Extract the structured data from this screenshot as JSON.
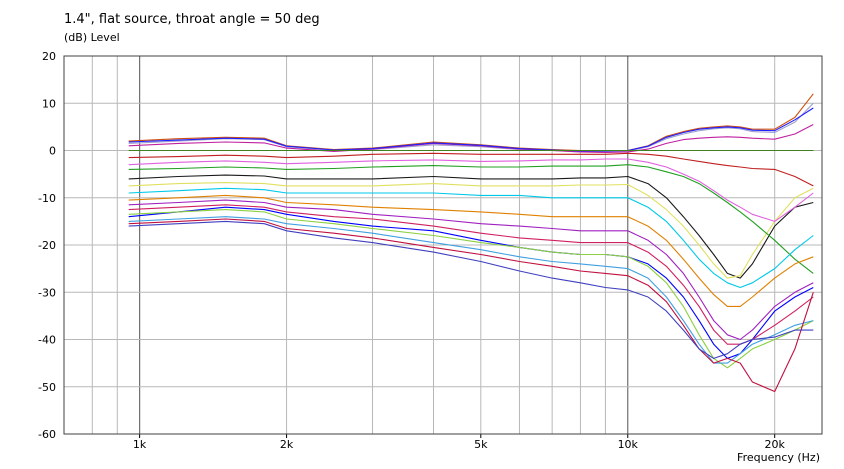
{
  "chart_data": {
    "type": "line",
    "title": "1.4\", flat source, throat angle = 50 deg",
    "ylabel": "(dB)  Level",
    "xlabel": "Frequency  (Hz)",
    "x_scale": "log",
    "xlim": [
      700,
      25000
    ],
    "ylim": [
      -60,
      20
    ],
    "grid": true,
    "y_ticks": [
      20,
      10,
      0,
      -10,
      -20,
      -30,
      -40,
      -50,
      -60
    ],
    "x_ticks": [
      {
        "value": 1000,
        "label": "1k"
      },
      {
        "value": 2000,
        "label": "2k"
      },
      {
        "value": 5000,
        "label": "5k"
      },
      {
        "value": 10000,
        "label": "10k"
      },
      {
        "value": 20000,
        "label": "20k"
      }
    ],
    "series": [
      {
        "color": "#1a1a1a",
        "x": [
          950,
          1200,
          1500,
          1800,
          2000,
          2500,
          3000,
          4000,
          5000,
          6000,
          7000,
          8000,
          9000,
          10000,
          11000,
          12000,
          13000,
          14000,
          15000,
          16000,
          17000,
          18000,
          20000,
          22000,
          24000
        ],
        "y": [
          -6.0,
          -5.5,
          -5.2,
          -5.4,
          -6.0,
          -6.0,
          -6.0,
          -5.5,
          -6.0,
          -6.0,
          -6.0,
          -5.8,
          -5.8,
          -5.5,
          -7.0,
          -10.0,
          -14.0,
          -18.0,
          -22.0,
          -26.0,
          -27.0,
          -24.0,
          -16.0,
          -12.0,
          -11.0
        ]
      },
      {
        "color": "#e0e060",
        "x": [
          950,
          1200,
          1500,
          1800,
          2000,
          2500,
          3000,
          4000,
          5000,
          6000,
          7000,
          8000,
          9000,
          10000,
          11000,
          12000,
          13000,
          14000,
          15000,
          16000,
          17000,
          18000,
          20000,
          22000,
          24000
        ],
        "y": [
          -7.5,
          -7.0,
          -6.8,
          -7.0,
          -7.5,
          -7.5,
          -7.5,
          -7.0,
          -7.5,
          -7.5,
          -7.5,
          -7.3,
          -7.3,
          -7.2,
          -9.5,
          -12.5,
          -16.0,
          -20.0,
          -24.0,
          -27.0,
          -26.5,
          -22.0,
          -15.0,
          -10.0,
          -8.0
        ]
      },
      {
        "color": "#0000ff",
        "x": [
          950,
          1200,
          1500,
          1800,
          2000,
          2500,
          3000,
          4000,
          5000,
          6000,
          7000,
          8000,
          9000,
          10000,
          11000,
          12000,
          13000,
          14000,
          15000,
          16000,
          17000,
          18000,
          20000,
          22000,
          24000
        ],
        "y": [
          -14.0,
          -13.0,
          -12.0,
          -12.5,
          -13.5,
          -15.0,
          -16.0,
          -17.0,
          -19.0,
          -20.5,
          -21.5,
          -22.0,
          -22.0,
          -22.5,
          -24.0,
          -27.0,
          -31.0,
          -36.0,
          -41.0,
          -44.0,
          -43.0,
          -40.0,
          -34.0,
          -31.0,
          -29.0
        ]
      },
      {
        "color": "#a0a0d0",
        "x": [
          950,
          1200,
          1500,
          1800,
          2000,
          2500,
          3000,
          4000,
          5000,
          6000,
          7000,
          8000,
          9000,
          10000,
          11000,
          12000,
          13000,
          14000,
          15000,
          16000,
          17000,
          18000,
          20000,
          22000,
          24000
        ],
        "y": [
          1.5,
          2.0,
          2.5,
          2.3,
          0.8,
          0.0,
          0.2,
          1.2,
          0.8,
          0.2,
          0.0,
          -0.3,
          -0.3,
          -0.2,
          0.8,
          2.5,
          3.5,
          4.2,
          4.6,
          4.8,
          4.6,
          4.0,
          3.8,
          6.0,
          10.0
        ]
      },
      {
        "color": "#20a020",
        "x": [
          950,
          1200,
          1500,
          1800,
          2000,
          2500,
          3000,
          4000,
          5000,
          6000,
          7000,
          8000,
          9000,
          10000,
          11000,
          12000,
          13000,
          14000,
          15000,
          16000,
          17000,
          18000,
          20000,
          22000,
          24000
        ],
        "y": [
          -4.0,
          -3.8,
          -3.5,
          -3.7,
          -4.0,
          -3.8,
          -3.5,
          -3.2,
          -3.5,
          -3.5,
          -3.3,
          -3.3,
          -3.3,
          -3.0,
          -3.5,
          -4.5,
          -5.5,
          -7.0,
          -9.0,
          -11.0,
          -13.0,
          -15.0,
          -19.0,
          -23.0,
          -26.0
        ]
      },
      {
        "color": "#00c8e8",
        "x": [
          950,
          1200,
          1500,
          1800,
          2000,
          2500,
          3000,
          4000,
          5000,
          6000,
          7000,
          8000,
          9000,
          10000,
          11000,
          12000,
          13000,
          14000,
          15000,
          16000,
          17000,
          18000,
          20000,
          22000,
          24000
        ],
        "y": [
          -9.0,
          -8.5,
          -8.0,
          -8.3,
          -9.0,
          -9.0,
          -9.0,
          -9.0,
          -9.5,
          -9.5,
          -10.0,
          -10.0,
          -10.0,
          -10.0,
          -12.0,
          -15.0,
          -19.0,
          -23.0,
          -26.0,
          -28.0,
          -29.0,
          -28.0,
          -25.0,
          -21.0,
          -18.0
        ]
      },
      {
        "color": "#e08000",
        "x": [
          950,
          1200,
          1500,
          1800,
          2000,
          2500,
          3000,
          4000,
          5000,
          6000,
          7000,
          8000,
          9000,
          10000,
          11000,
          12000,
          13000,
          14000,
          15000,
          16000,
          17000,
          18000,
          20000,
          22000,
          24000
        ],
        "y": [
          -10.5,
          -10.0,
          -9.5,
          -10.0,
          -11.0,
          -11.5,
          -12.0,
          -12.5,
          -13.0,
          -13.5,
          -14.0,
          -14.0,
          -14.0,
          -14.0,
          -16.0,
          -19.0,
          -23.0,
          -27.0,
          -30.5,
          -33.0,
          -33.0,
          -31.0,
          -27.0,
          -24.0,
          -22.5
        ]
      },
      {
        "color": "#a020c0",
        "x": [
          950,
          1200,
          1500,
          1800,
          2000,
          2500,
          3000,
          4000,
          5000,
          6000,
          7000,
          8000,
          9000,
          10000,
          11000,
          12000,
          13000,
          14000,
          15000,
          16000,
          17000,
          18000,
          20000,
          22000,
          24000
        ],
        "y": [
          -11.5,
          -11.0,
          -10.5,
          -11.0,
          -12.0,
          -12.5,
          -13.5,
          -14.5,
          -15.5,
          -16.0,
          -16.5,
          -17.0,
          -17.0,
          -17.0,
          -19.0,
          -22.0,
          -26.0,
          -31.0,
          -36.0,
          -39.0,
          -40.0,
          -38.0,
          -33.0,
          -30.0,
          -28.0
        ]
      },
      {
        "color": "#d02060",
        "x": [
          950,
          1200,
          1500,
          1800,
          2000,
          2500,
          3000,
          4000,
          5000,
          6000,
          7000,
          8000,
          9000,
          10000,
          11000,
          12000,
          13000,
          14000,
          15000,
          16000,
          17000,
          18000,
          20000,
          22000,
          24000
        ],
        "y": [
          -12.5,
          -12.0,
          -11.5,
          -12.0,
          -13.0,
          -14.0,
          -14.5,
          -16.0,
          -17.5,
          -18.5,
          -19.0,
          -19.5,
          -19.5,
          -19.5,
          -21.5,
          -24.5,
          -28.5,
          -33.0,
          -38.0,
          -41.0,
          -41.0,
          -40.0,
          -37.0,
          -34.0,
          -31.0
        ]
      },
      {
        "color": "#8cd040",
        "x": [
          950,
          1200,
          1500,
          1800,
          2000,
          2500,
          3000,
          4000,
          5000,
          6000,
          7000,
          8000,
          9000,
          10000,
          11000,
          12000,
          13000,
          14000,
          15000,
          16000,
          17000,
          18000,
          20000,
          22000,
          24000
        ],
        "y": [
          -13.5,
          -13.0,
          -12.5,
          -13.0,
          -14.5,
          -15.5,
          -16.5,
          -18.0,
          -19.5,
          -20.5,
          -21.5,
          -22.0,
          -22.0,
          -22.5,
          -24.5,
          -28.0,
          -33.0,
          -39.0,
          -44.0,
          -46.0,
          -44.0,
          -42.0,
          -40.0,
          -38.0,
          -36.0
        ]
      },
      {
        "color": "#40a0e0",
        "x": [
          950,
          1200,
          1500,
          1800,
          2000,
          2500,
          3000,
          4000,
          5000,
          6000,
          7000,
          8000,
          9000,
          10000,
          11000,
          12000,
          13000,
          14000,
          15000,
          16000,
          17000,
          18000,
          20000,
          22000,
          24000
        ],
        "y": [
          -15.0,
          -14.5,
          -14.0,
          -14.5,
          -15.5,
          -16.5,
          -17.5,
          -19.5,
          -21.0,
          -22.5,
          -23.5,
          -24.0,
          -24.5,
          -25.0,
          -27.0,
          -31.0,
          -36.0,
          -41.0,
          -45.0,
          -45.0,
          -43.0,
          -41.0,
          -39.0,
          -37.0,
          -36.0
        ]
      },
      {
        "color": "#c01040",
        "x": [
          950,
          1200,
          1500,
          1800,
          2000,
          2500,
          3000,
          4000,
          5000,
          6000,
          7000,
          8000,
          9000,
          10000,
          11000,
          12000,
          13000,
          14000,
          15000,
          16000,
          17000,
          18000,
          20000,
          22000,
          24000
        ],
        "y": [
          -15.5,
          -15.0,
          -14.5,
          -15.0,
          -16.5,
          -17.5,
          -18.5,
          -20.5,
          -22.0,
          -23.5,
          -24.5,
          -25.5,
          -26.0,
          -26.5,
          -28.5,
          -32.0,
          -37.0,
          -42.0,
          -45.0,
          -44.0,
          -45.0,
          -49.0,
          -51.0,
          -42.0,
          -30.0
        ]
      },
      {
        "color": "#4040c0",
        "x": [
          950,
          1200,
          1500,
          1800,
          2000,
          2500,
          3000,
          4000,
          5000,
          6000,
          7000,
          8000,
          9000,
          10000,
          11000,
          12000,
          13000,
          14000,
          15000,
          16000,
          17000,
          18000,
          20000,
          22000,
          24000
        ],
        "y": [
          -16.0,
          -15.5,
          -15.0,
          -15.5,
          -17.0,
          -18.5,
          -19.5,
          -21.5,
          -23.5,
          -25.5,
          -27.0,
          -28.0,
          -29.0,
          -29.5,
          -31.0,
          -34.0,
          -38.0,
          -42.0,
          -44.0,
          -43.0,
          -41.0,
          -40.0,
          -39.5,
          -38.0,
          -38.0
        ]
      },
      {
        "color": "#e060e0",
        "x": [
          950,
          1200,
          1500,
          1800,
          2000,
          2500,
          3000,
          4000,
          5000,
          6000,
          7000,
          8000,
          9000,
          10000,
          11000,
          12000,
          13000,
          14000,
          15000,
          16000,
          17000,
          18000,
          20000,
          22000,
          24000
        ],
        "y": [
          -3.0,
          -2.5,
          -2.2,
          -2.5,
          -2.8,
          -2.5,
          -2.2,
          -2.0,
          -2.3,
          -2.2,
          -2.0,
          -2.0,
          -1.8,
          -1.8,
          -2.5,
          -3.5,
          -5.0,
          -6.5,
          -8.5,
          -10.5,
          -12.0,
          -13.5,
          -15.0,
          -12.0,
          -9.0
        ]
      },
      {
        "color": "#c02020",
        "x": [
          950,
          1200,
          1500,
          1800,
          2000,
          2500,
          3000,
          4000,
          5000,
          6000,
          7000,
          8000,
          9000,
          10000,
          11000,
          12000,
          13000,
          14000,
          15000,
          16000,
          17000,
          18000,
          20000,
          22000,
          24000
        ],
        "y": [
          -1.5,
          -1.3,
          -1.0,
          -1.2,
          -1.5,
          -1.2,
          -0.8,
          -0.6,
          -0.8,
          -0.8,
          -0.8,
          -0.8,
          -0.8,
          -0.6,
          -0.8,
          -1.2,
          -1.8,
          -2.3,
          -2.8,
          -3.2,
          -3.5,
          -3.8,
          -4.0,
          -5.5,
          -7.5
        ]
      },
      {
        "color": "#c020a0",
        "x": [
          950,
          1200,
          1500,
          1800,
          2000,
          2500,
          3000,
          4000,
          5000,
          6000,
          7000,
          8000,
          9000,
          10000,
          11000,
          12000,
          13000,
          14000,
          15000,
          16000,
          17000,
          18000,
          20000,
          22000,
          24000
        ],
        "y": [
          1.0,
          1.5,
          1.8,
          1.6,
          0.5,
          -0.2,
          0.3,
          1.5,
          1.0,
          0.3,
          0.0,
          -0.3,
          -0.4,
          -0.3,
          0.3,
          1.5,
          2.3,
          2.6,
          2.8,
          2.9,
          2.8,
          2.6,
          2.4,
          3.5,
          5.5
        ]
      },
      {
        "color": "#d05010",
        "x": [
          950,
          1200,
          1500,
          1800,
          2000,
          2500,
          3000,
          4000,
          5000,
          6000,
          7000,
          8000,
          9000,
          10000,
          11000,
          12000,
          13000,
          14000,
          15000,
          16000,
          17000,
          18000,
          20000,
          22000,
          24000
        ],
        "y": [
          2.0,
          2.5,
          2.8,
          2.6,
          1.0,
          0.2,
          0.5,
          1.8,
          1.2,
          0.5,
          0.2,
          0.0,
          0.0,
          0.0,
          1.0,
          3.0,
          4.0,
          4.7,
          5.0,
          5.2,
          5.0,
          4.5,
          4.5,
          7.0,
          12.0
        ]
      },
      {
        "color": "#2020ff",
        "x": [
          950,
          1200,
          1500,
          1800,
          2000,
          2500,
          3000,
          4000,
          5000,
          6000,
          7000,
          8000,
          9000,
          10000,
          11000,
          12000,
          13000,
          14000,
          15000,
          16000,
          17000,
          18000,
          20000,
          22000,
          24000
        ],
        "y": [
          1.8,
          2.2,
          2.6,
          2.4,
          0.9,
          0.1,
          0.4,
          1.6,
          1.1,
          0.4,
          0.1,
          -0.1,
          -0.1,
          0.0,
          0.9,
          2.8,
          3.8,
          4.5,
          4.8,
          5.0,
          4.8,
          4.3,
          4.2,
          6.5,
          9.0
        ]
      },
      {
        "color": "#408020",
        "x": [
          950,
          1200,
          1500,
          1800,
          2000,
          2500,
          3000,
          4000,
          5000,
          6000,
          7000,
          8000,
          9000,
          10000,
          11000,
          12000,
          13000,
          14000,
          15000,
          16000,
          17000,
          18000,
          20000,
          22000,
          24000
        ],
        "y": [
          0,
          0,
          0,
          0,
          0,
          0,
          0,
          0,
          0,
          0,
          0,
          0,
          0,
          0,
          0,
          0,
          0,
          0,
          0,
          0,
          0,
          0,
          0,
          0,
          0
        ]
      }
    ]
  }
}
